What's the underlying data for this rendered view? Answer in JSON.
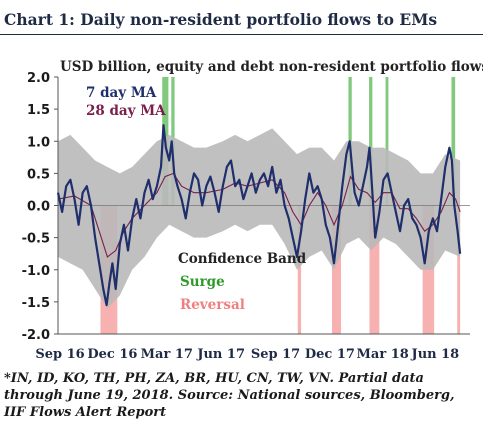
{
  "title": "Chart 1: Daily non-resident portfolio flows to EMs",
  "subtitle": "USD billion, equity and debt non-resident portfolio flows",
  "footnote": "*IN, ID, KO, TH, PH, ZA, BR, HU, CN, TW, VN. Partial data through June 19, 2018. Source: National sources, Bloomberg, IIF Flows Alert Report",
  "colors": {
    "ma7": "#1f2f6b",
    "ma28": "#7a1f4a",
    "band": "#b9b9b9",
    "surge": "#6cbf6a",
    "reversal": "#f7a9a9",
    "orange": "#e8862a"
  },
  "chart_data": {
    "type": "line",
    "ylim": [
      -2.0,
      2.0
    ],
    "yticks": [
      "2.0",
      "1.5",
      "1.0",
      "0.5",
      "0.0",
      "-0.5",
      "-1.0",
      "-1.5",
      "-2.0"
    ],
    "xlim": [
      0,
      100
    ],
    "xticks": [
      {
        "label": "Sep 16",
        "x": 0
      },
      {
        "label": "Dec 16",
        "x": 13.2
      },
      {
        "label": "Mar 17",
        "x": 26.4
      },
      {
        "label": "Jun 17",
        "x": 39.6
      },
      {
        "label": "Sep 17",
        "x": 52.8
      },
      {
        "label": "Dec 17",
        "x": 66
      },
      {
        "label": "Mar 18",
        "x": 78.8
      },
      {
        "label": "Jun 18",
        "x": 91.6
      }
    ],
    "legend": [
      "7 day MA",
      "28 day MA",
      "Confidence Band",
      "Surge",
      "Reversal"
    ],
    "surge_periods": [
      [
        25.3,
        26.8
      ],
      [
        27.5,
        28.3
      ],
      [
        70.5,
        71.3
      ],
      [
        75.5,
        76.3
      ],
      [
        79.5,
        80.2
      ],
      [
        95.5,
        96.4
      ]
    ],
    "reversal_periods": [
      [
        10.3,
        14.4
      ],
      [
        58.2,
        59.0
      ],
      [
        66.5,
        68.7
      ],
      [
        75.6,
        78.0
      ],
      [
        88.5,
        91.3
      ],
      [
        96.9,
        97.6
      ]
    ],
    "ma7": [
      [
        0,
        0.2
      ],
      [
        1,
        -0.1
      ],
      [
        2,
        0.3
      ],
      [
        3,
        0.4
      ],
      [
        4,
        0.1
      ],
      [
        5,
        -0.3
      ],
      [
        6,
        0.2
      ],
      [
        7,
        0.3
      ],
      [
        8,
        0.0
      ],
      [
        9,
        -0.5
      ],
      [
        10,
        -0.9
      ],
      [
        11,
        -1.3
      ],
      [
        11.8,
        -1.55
      ],
      [
        12.5,
        -1.2
      ],
      [
        13.2,
        -0.9
      ],
      [
        14,
        -1.3
      ],
      [
        15,
        -0.6
      ],
      [
        16,
        -0.3
      ],
      [
        17,
        -0.7
      ],
      [
        18,
        -0.2
      ],
      [
        19,
        0.1
      ],
      [
        20,
        -0.2
      ],
      [
        21,
        0.2
      ],
      [
        22,
        0.4
      ],
      [
        23,
        0.1
      ],
      [
        24,
        0.3
      ],
      [
        25,
        0.6
      ],
      [
        25.6,
        1.25
      ],
      [
        26.2,
        0.9
      ],
      [
        27,
        0.7
      ],
      [
        27.6,
        1.0
      ],
      [
        28.2,
        0.5
      ],
      [
        29,
        0.3
      ],
      [
        30,
        0.1
      ],
      [
        31,
        -0.2
      ],
      [
        32,
        0.2
      ],
      [
        33,
        0.5
      ],
      [
        34,
        0.4
      ],
      [
        35,
        0.0
      ],
      [
        36,
        0.3
      ],
      [
        37,
        0.45
      ],
      [
        38,
        0.2
      ],
      [
        39,
        -0.1
      ],
      [
        40,
        0.3
      ],
      [
        41,
        0.6
      ],
      [
        42,
        0.7
      ],
      [
        43,
        0.3
      ],
      [
        44,
        0.4
      ],
      [
        45,
        0.1
      ],
      [
        46,
        0.3
      ],
      [
        47,
        0.5
      ],
      [
        48,
        0.2
      ],
      [
        49,
        0.4
      ],
      [
        50,
        0.5
      ],
      [
        51,
        0.3
      ],
      [
        52,
        0.6
      ],
      [
        53,
        0.2
      ],
      [
        54,
        0.4
      ],
      [
        55,
        0.0
      ],
      [
        56,
        -0.2
      ],
      [
        57,
        -0.5
      ],
      [
        58,
        -0.8
      ],
      [
        59,
        -0.4
      ],
      [
        60,
        0.1
      ],
      [
        61,
        0.5
      ],
      [
        62,
        0.2
      ],
      [
        63,
        0.3
      ],
      [
        64,
        0.1
      ],
      [
        65,
        -0.3
      ],
      [
        66,
        -0.5
      ],
      [
        67,
        -0.9
      ],
      [
        68,
        -0.3
      ],
      [
        69,
        0.3
      ],
      [
        70,
        0.8
      ],
      [
        70.8,
        1.0
      ],
      [
        71.5,
        0.5
      ],
      [
        72,
        0.2
      ],
      [
        73,
        0.0
      ],
      [
        74,
        0.3
      ],
      [
        75,
        0.6
      ],
      [
        75.6,
        0.9
      ],
      [
        76.3,
        0.2
      ],
      [
        77,
        -0.5
      ],
      [
        78,
        -0.1
      ],
      [
        79,
        0.4
      ],
      [
        80,
        0.5
      ],
      [
        81,
        0.2
      ],
      [
        82,
        -0.1
      ],
      [
        83,
        -0.4
      ],
      [
        84,
        0.0
      ],
      [
        85,
        0.1
      ],
      [
        86,
        -0.2
      ],
      [
        87,
        -0.3
      ],
      [
        88,
        -0.5
      ],
      [
        89,
        -0.9
      ],
      [
        90,
        -0.4
      ],
      [
        91,
        -0.2
      ],
      [
        92,
        -0.4
      ],
      [
        93,
        0.1
      ],
      [
        94,
        0.6
      ],
      [
        95,
        0.9
      ],
      [
        95.6,
        0.7
      ],
      [
        96.2,
        0.0
      ],
      [
        97,
        -0.4
      ],
      [
        97.6,
        -0.75
      ]
    ],
    "ma28": [
      [
        0,
        0.1
      ],
      [
        4,
        0.15
      ],
      [
        8,
        0.0
      ],
      [
        10,
        -0.4
      ],
      [
        12,
        -0.8
      ],
      [
        14,
        -0.7
      ],
      [
        16,
        -0.4
      ],
      [
        18,
        -0.2
      ],
      [
        21,
        0.0
      ],
      [
        24,
        0.2
      ],
      [
        26,
        0.45
      ],
      [
        28,
        0.5
      ],
      [
        30,
        0.3
      ],
      [
        33,
        0.2
      ],
      [
        36,
        0.2
      ],
      [
        40,
        0.25
      ],
      [
        43,
        0.35
      ],
      [
        46,
        0.3
      ],
      [
        49,
        0.35
      ],
      [
        52,
        0.4
      ],
      [
        55,
        0.2
      ],
      [
        57,
        -0.1
      ],
      [
        59,
        -0.3
      ],
      [
        61,
        0.0
      ],
      [
        63,
        0.2
      ],
      [
        65,
        0.0
      ],
      [
        67,
        -0.3
      ],
      [
        69,
        0.0
      ],
      [
        71,
        0.45
      ],
      [
        73,
        0.25
      ],
      [
        75,
        0.2
      ],
      [
        77,
        0.05
      ],
      [
        79,
        0.2
      ],
      [
        81,
        0.2
      ],
      [
        83,
        -0.05
      ],
      [
        85,
        -0.05
      ],
      [
        87,
        -0.2
      ],
      [
        89,
        -0.4
      ],
      [
        91,
        -0.3
      ],
      [
        93,
        -0.1
      ],
      [
        95,
        0.2
      ],
      [
        96.5,
        0.1
      ],
      [
        97.6,
        -0.1
      ]
    ],
    "band_upper": [
      [
        0,
        1.0
      ],
      [
        3,
        1.1
      ],
      [
        6,
        0.9
      ],
      [
        9,
        0.7
      ],
      [
        12,
        0.6
      ],
      [
        15,
        0.5
      ],
      [
        18,
        0.6
      ],
      [
        21,
        0.8
      ],
      [
        24,
        1.0
      ],
      [
        27,
        1.1
      ],
      [
        30,
        1.0
      ],
      [
        33,
        0.9
      ],
      [
        36,
        0.9
      ],
      [
        40,
        1.0
      ],
      [
        43,
        1.1
      ],
      [
        46,
        1.0
      ],
      [
        49,
        1.1
      ],
      [
        52,
        1.2
      ],
      [
        55,
        1.0
      ],
      [
        58,
        0.8
      ],
      [
        61,
        0.9
      ],
      [
        64,
        0.9
      ],
      [
        67,
        0.7
      ],
      [
        70,
        1.0
      ],
      [
        73,
        1.0
      ],
      [
        76,
        0.9
      ],
      [
        79,
        0.9
      ],
      [
        82,
        0.8
      ],
      [
        85,
        0.7
      ],
      [
        88,
        0.5
      ],
      [
        91,
        0.5
      ],
      [
        94,
        0.8
      ],
      [
        97.6,
        0.7
      ]
    ],
    "band_lower": [
      [
        0,
        -0.8
      ],
      [
        3,
        -0.9
      ],
      [
        6,
        -1.0
      ],
      [
        9,
        -1.3
      ],
      [
        12,
        -1.6
      ],
      [
        15,
        -1.4
      ],
      [
        18,
        -1.0
      ],
      [
        21,
        -0.8
      ],
      [
        24,
        -0.5
      ],
      [
        27,
        -0.3
      ],
      [
        30,
        -0.4
      ],
      [
        33,
        -0.5
      ],
      [
        36,
        -0.5
      ],
      [
        40,
        -0.4
      ],
      [
        43,
        -0.3
      ],
      [
        46,
        -0.4
      ],
      [
        49,
        -0.3
      ],
      [
        52,
        -0.3
      ],
      [
        55,
        -0.6
      ],
      [
        58,
        -1.0
      ],
      [
        61,
        -0.8
      ],
      [
        64,
        -0.7
      ],
      [
        67,
        -1.0
      ],
      [
        70,
        -0.6
      ],
      [
        73,
        -0.5
      ],
      [
        76,
        -0.7
      ],
      [
        79,
        -0.5
      ],
      [
        82,
        -0.6
      ],
      [
        85,
        -0.8
      ],
      [
        88,
        -1.0
      ],
      [
        91,
        -1.0
      ],
      [
        94,
        -0.7
      ],
      [
        97.6,
        -0.8
      ]
    ]
  }
}
